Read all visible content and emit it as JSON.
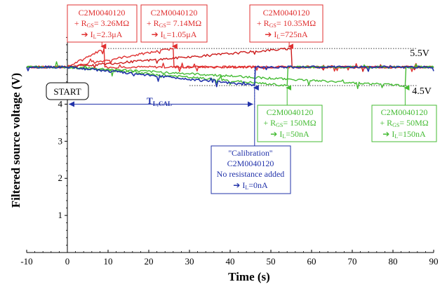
{
  "chart_data": {
    "type": "line",
    "title": "",
    "xlabel": "Time (s)",
    "ylabel": "Filtered source voltage (V)",
    "xlim": [
      -10,
      90
    ],
    "ylim": [
      0,
      5.9
    ],
    "xticks": [
      -10,
      0,
      10,
      20,
      30,
      40,
      50,
      60,
      70,
      80,
      90
    ],
    "yticks": [
      1,
      2,
      3,
      4
    ],
    "y_ref_lines": [
      {
        "value": 5.5,
        "label": "5.5V"
      },
      {
        "value": 4.5,
        "label": "4.5V"
      }
    ],
    "start_label": "START",
    "tcal_label_main": "T",
    "tcal_label_sub": "L,CAL",
    "tcal_span": [
      0,
      46
    ],
    "baseline_v": 5.0,
    "series": [
      {
        "color": "#e03030",
        "x": [
          -10,
          0,
          9,
          9.2,
          90
        ],
        "y": [
          5.0,
          5.0,
          5.5,
          5.0,
          5.0
        ]
      },
      {
        "color": "#e03030",
        "x": [
          -10,
          0,
          26,
          26.2,
          90
        ],
        "y": [
          5.0,
          5.0,
          5.5,
          5.0,
          5.0
        ]
      },
      {
        "color": "#cc1a1a",
        "x": [
          -10,
          0,
          55,
          55.2,
          90
        ],
        "y": [
          5.0,
          5.0,
          5.5,
          5.0,
          5.0
        ]
      },
      {
        "color": "#44bb33",
        "x": [
          -10,
          0,
          54,
          54.2,
          90
        ],
        "y": [
          5.0,
          5.0,
          4.5,
          5.0,
          5.0
        ]
      },
      {
        "color": "#44bb33",
        "x": [
          -10,
          0,
          83,
          83.2,
          90
        ],
        "y": [
          5.0,
          5.0,
          4.5,
          5.0,
          5.0
        ]
      },
      {
        "color": "#2233aa",
        "x": [
          -10,
          0,
          46,
          46.2,
          90
        ],
        "y": [
          5.0,
          5.0,
          4.5,
          5.0,
          5.0
        ]
      }
    ],
    "annotations": [
      {
        "color": "#e03030",
        "line1": "C2M0040120",
        "r_prefix": "+ R",
        "r_sub": "GS",
        "r_value": "= 3.26MΩ",
        "arrow": "➔",
        "i_prefix": "I",
        "i_sub": "L",
        "i_value": "=2.3μA",
        "target_x": 8.5
      },
      {
        "color": "#e03030",
        "line1": "C2M0040120",
        "r_prefix": "+ R",
        "r_sub": "GS",
        "r_value": "= 7.14MΩ",
        "arrow": "➔",
        "i_prefix": "I",
        "i_sub": "L",
        "i_value": "=1.05μA",
        "target_x": 26
      },
      {
        "color": "#e03030",
        "line1": "C2M0040120",
        "r_prefix": "+ R",
        "r_sub": "GS",
        "r_value": "= 10.35MΩ",
        "arrow": "➔",
        "i_prefix": "I",
        "i_sub": "L",
        "i_value": "=725nA",
        "target_x": 54.5
      },
      {
        "color": "#44bb33",
        "line1": "C2M0040120",
        "r_prefix": "+ R",
        "r_sub": "GS",
        "r_value": "= 150MΩ",
        "arrow": "➔",
        "i_prefix": "I",
        "i_sub": "L",
        "i_value": "=50nA",
        "target_x": 54
      },
      {
        "color": "#44bb33",
        "line1": "C2M0040120",
        "r_prefix": "+ R",
        "r_sub": "GS",
        "r_value": "= 50MΩ",
        "arrow": "➔",
        "i_prefix": "I",
        "i_sub": "L",
        "i_value": "=150nA",
        "target_x": 83
      },
      {
        "color": "#2233aa",
        "line1": "''Calibration''",
        "line2": "C2M0040120",
        "line3": "No resistance added",
        "arrow": "➔",
        "i_prefix": "I",
        "i_sub": "L",
        "i_value": "=0nA",
        "target_x": 46
      }
    ]
  }
}
